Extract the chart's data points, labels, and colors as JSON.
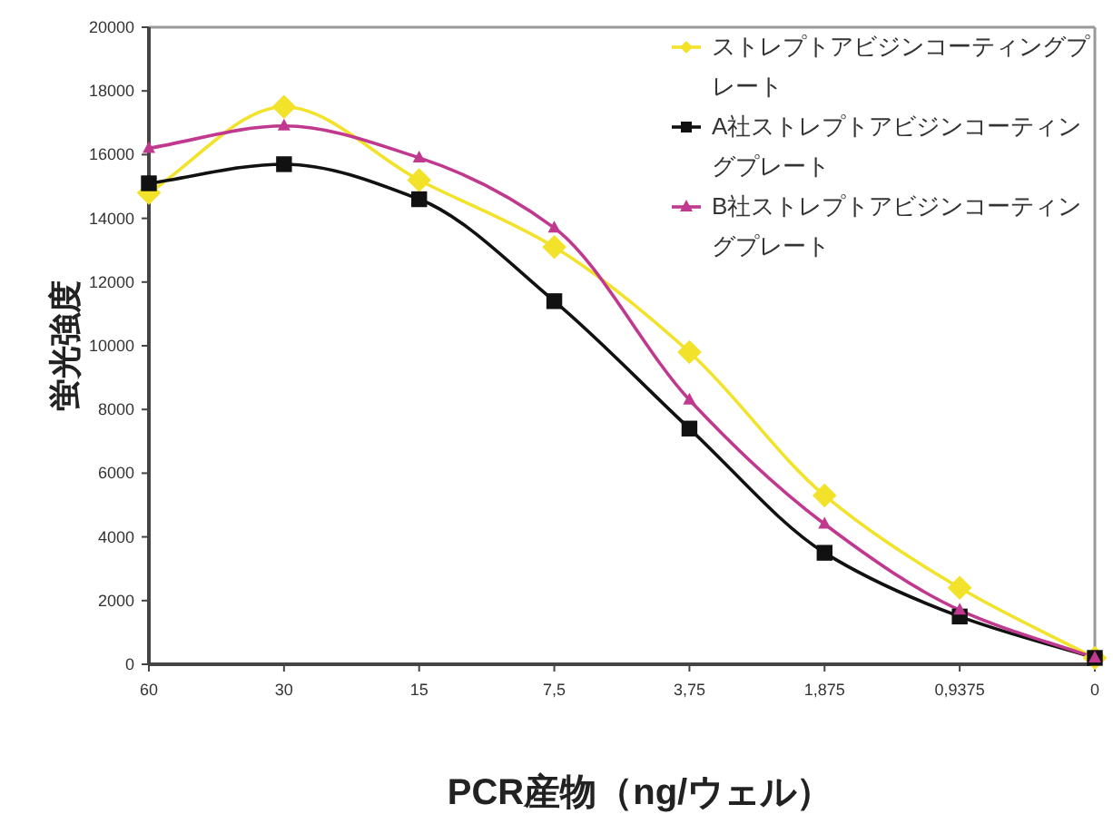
{
  "chart_data": {
    "type": "line",
    "xlabel": "PCR産物（ng/ウェル）",
    "ylabel": "蛍光強度",
    "categories": [
      "60",
      "30",
      "15",
      "7,5",
      "3,75",
      "1,875",
      "0,9375",
      "0"
    ],
    "ylim": [
      0,
      20000
    ],
    "yticks": [
      0,
      2000,
      4000,
      6000,
      8000,
      10000,
      12000,
      14000,
      16000,
      18000,
      20000
    ],
    "grid": false,
    "legend": "top right",
    "line_style": "solid",
    "series": [
      {
        "name": "ストレプトアビジンコーティングプレート",
        "color": "#f2e22a",
        "marker": "diamond",
        "values": [
          14800,
          17500,
          15200,
          13100,
          9800,
          5300,
          2400,
          200
        ]
      },
      {
        "name": "A社ストレプトアビジンコーティングプレート",
        "color": "#111111",
        "marker": "square",
        "values": [
          15100,
          15700,
          14600,
          11400,
          7400,
          3500,
          1500,
          200
        ]
      },
      {
        "name": "B社ストレプトアビジンコーティングプレート",
        "color": "#c0398e",
        "marker": "triangle",
        "values": [
          16200,
          16900,
          15900,
          13700,
          8300,
          4400,
          1700,
          200
        ]
      }
    ]
  }
}
